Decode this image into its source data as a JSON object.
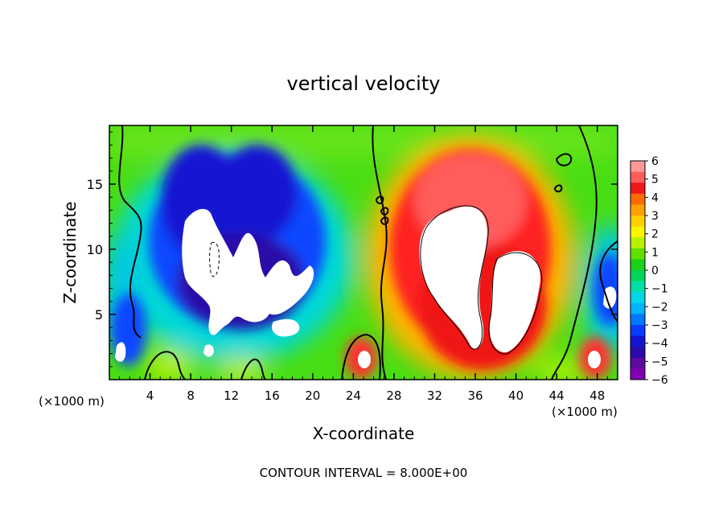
{
  "chart_data": {
    "type": "heatmap",
    "title": "vertical velocity",
    "xlabel": "X-coordinate",
    "ylabel": "Z-coordinate",
    "x_unit_left": "(×1000 m)",
    "x_unit_right": "(×1000 m)",
    "footer": "CONTOUR INTERVAL = 8.000E+00",
    "xlim": [
      0,
      50
    ],
    "ylim": [
      0,
      19.5
    ],
    "x_ticks": [
      4,
      8,
      12,
      16,
      20,
      24,
      28,
      32,
      36,
      40,
      44,
      48
    ],
    "x_tick_labels": [
      "4",
      "8",
      "12",
      "16",
      "20",
      "24",
      "28",
      "32",
      "36",
      "40",
      "44",
      "48"
    ],
    "y_ticks": [
      5,
      10,
      15
    ],
    "y_tick_labels": [
      "5",
      "10",
      "15"
    ],
    "colorbar": {
      "min": -6,
      "max": 6,
      "labels": [
        "6",
        "5",
        "4",
        "3",
        "2",
        "1",
        "0",
        "−1",
        "−2",
        "−3",
        "−4",
        "−5",
        "−6"
      ],
      "colors": [
        "#ff9999",
        "#ff5c5c",
        "#f01818",
        "#ff6a00",
        "#ffa200",
        "#ffd000",
        "#f6f600",
        "#b8f000",
        "#5fe000",
        "#19d219",
        "#00d65a",
        "#00e0a8",
        "#00d8e8",
        "#00b4ff",
        "#0078ff",
        "#0a3cff",
        "#1414d2",
        "#2a0aa8",
        "#5a0aa0",
        "#8200b4"
      ]
    },
    "background_value": 0,
    "features": [
      {
        "name": "updraft-core",
        "x": 34.5,
        "z": 10.5,
        "w": 6.0,
        "h": 12.0,
        "w_value": 12
      },
      {
        "name": "updraft-core-lower",
        "x": 39.0,
        "z": 5.5,
        "w": 5.0,
        "h": 8.0,
        "w_value": 12
      },
      {
        "name": "downdraft-core",
        "x": 13.0,
        "z": 9.0,
        "w": 11.0,
        "h": 9.0,
        "w_value": -12
      },
      {
        "name": "updraft-cell",
        "x": 24.9,
        "z": 1.8,
        "w": 1.6,
        "h": 2.2,
        "w_value": 8
      },
      {
        "name": "updraft-cell",
        "x": 46.9,
        "z": 1.8,
        "w": 1.6,
        "h": 2.2,
        "w_value": 8
      },
      {
        "name": "downdraft-cell",
        "x": 1.2,
        "z": 2.0,
        "w": 1.6,
        "h": 2.4,
        "w_value": -9
      },
      {
        "name": "downdraft-cell",
        "x": 49.5,
        "z": 6.5,
        "w": 1.0,
        "h": 2.4,
        "w_value": -8
      }
    ]
  }
}
